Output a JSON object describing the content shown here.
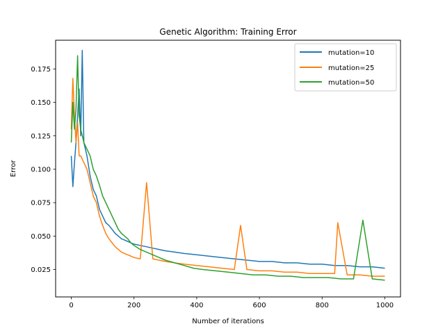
{
  "chart_data": {
    "type": "line",
    "title": "Genetic Algorithm: Training Error",
    "xlabel": "Number of iterations",
    "ylabel": "Error",
    "xlim": [
      -50,
      1050
    ],
    "ylim": [
      0.0045,
      0.1965
    ],
    "xticks": [
      0,
      200,
      400,
      600,
      800,
      1000
    ],
    "yticks": [
      0.025,
      0.05,
      0.075,
      0.1,
      0.125,
      0.15,
      0.175
    ],
    "ytick_labels": [
      "0.025",
      "0.050",
      "0.075",
      "0.100",
      "0.125",
      "0.150",
      "0.175"
    ],
    "legend": "top-right",
    "grid": false,
    "series": [
      {
        "name": "mutation=10",
        "color": "#1f77b4",
        "x": [
          0,
          5,
          10,
          15,
          20,
          25,
          30,
          35,
          40,
          50,
          60,
          70,
          80,
          90,
          100,
          110,
          120,
          130,
          140,
          150,
          160,
          170,
          180,
          190,
          200,
          220,
          240,
          260,
          280,
          300,
          330,
          360,
          400,
          440,
          480,
          520,
          560,
          600,
          640,
          680,
          720,
          760,
          800,
          840,
          880,
          920,
          960,
          1000
        ],
        "y": [
          0.11,
          0.087,
          0.105,
          0.12,
          0.14,
          0.16,
          0.125,
          0.189,
          0.12,
          0.11,
          0.095,
          0.085,
          0.08,
          0.07,
          0.065,
          0.06,
          0.058,
          0.055,
          0.052,
          0.05,
          0.048,
          0.047,
          0.046,
          0.045,
          0.044,
          0.043,
          0.042,
          0.041,
          0.04,
          0.039,
          0.038,
          0.037,
          0.036,
          0.035,
          0.034,
          0.033,
          0.032,
          0.031,
          0.031,
          0.03,
          0.03,
          0.029,
          0.029,
          0.028,
          0.028,
          0.027,
          0.027,
          0.026
        ]
      },
      {
        "name": "mutation=25",
        "color": "#ff7f0e",
        "x": [
          0,
          5,
          10,
          15,
          20,
          25,
          30,
          40,
          50,
          60,
          70,
          80,
          90,
          100,
          110,
          120,
          130,
          140,
          150,
          160,
          170,
          180,
          190,
          200,
          220,
          240,
          260,
          280,
          300,
          330,
          360,
          400,
          440,
          480,
          520,
          540,
          560,
          600,
          640,
          680,
          720,
          760,
          800,
          840,
          850,
          880,
          920,
          960,
          1000
        ],
        "y": [
          0.13,
          0.168,
          0.14,
          0.12,
          0.135,
          0.11,
          0.11,
          0.105,
          0.1,
          0.09,
          0.08,
          0.075,
          0.065,
          0.058,
          0.052,
          0.048,
          0.045,
          0.042,
          0.04,
          0.038,
          0.037,
          0.036,
          0.035,
          0.034,
          0.033,
          0.09,
          0.033,
          0.032,
          0.031,
          0.03,
          0.029,
          0.028,
          0.027,
          0.026,
          0.025,
          0.058,
          0.025,
          0.024,
          0.024,
          0.023,
          0.023,
          0.022,
          0.022,
          0.022,
          0.06,
          0.021,
          0.021,
          0.02,
          0.02
        ]
      },
      {
        "name": "mutation=50",
        "color": "#2ca02c",
        "x": [
          0,
          5,
          10,
          15,
          20,
          25,
          30,
          40,
          50,
          60,
          70,
          80,
          90,
          100,
          110,
          120,
          130,
          140,
          150,
          160,
          170,
          180,
          190,
          200,
          220,
          240,
          260,
          280,
          300,
          330,
          360,
          390,
          420,
          460,
          500,
          540,
          580,
          620,
          660,
          700,
          740,
          780,
          820,
          860,
          900,
          930,
          960,
          1000
        ],
        "y": [
          0.12,
          0.15,
          0.13,
          0.145,
          0.185,
          0.14,
          0.13,
          0.12,
          0.115,
          0.11,
          0.1,
          0.095,
          0.088,
          0.08,
          0.075,
          0.07,
          0.065,
          0.06,
          0.055,
          0.052,
          0.05,
          0.048,
          0.045,
          0.043,
          0.04,
          0.038,
          0.036,
          0.034,
          0.032,
          0.03,
          0.028,
          0.026,
          0.025,
          0.024,
          0.023,
          0.022,
          0.021,
          0.021,
          0.02,
          0.02,
          0.019,
          0.019,
          0.019,
          0.018,
          0.018,
          0.062,
          0.018,
          0.017
        ]
      }
    ]
  }
}
